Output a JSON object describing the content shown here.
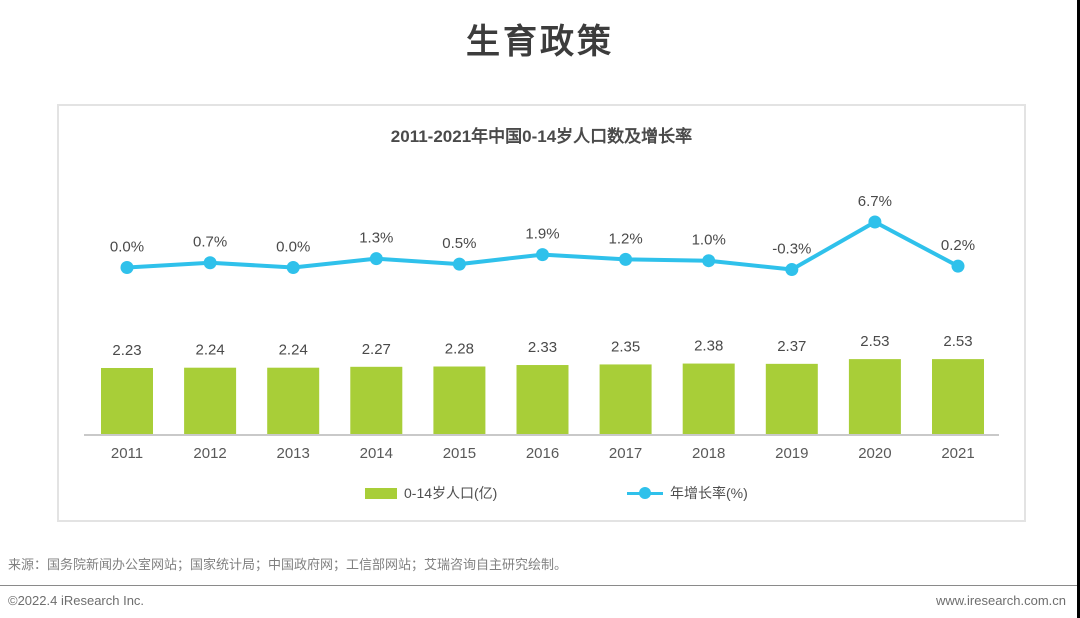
{
  "page_title": "生育政策",
  "chart_data": {
    "type": "bar+line",
    "title": "2011-2021年中国0-14岁人口数及增长率",
    "categories": [
      "2011",
      "2012",
      "2013",
      "2014",
      "2015",
      "2016",
      "2017",
      "2018",
      "2019",
      "2020",
      "2021"
    ],
    "series": [
      {
        "name": "0-14岁人口(亿)",
        "type": "bar",
        "color": "#a8ce38",
        "values": [
          2.23,
          2.24,
          2.24,
          2.27,
          2.28,
          2.33,
          2.35,
          2.38,
          2.37,
          2.53,
          2.53
        ],
        "labels": [
          "2.23",
          "2.24",
          "2.24",
          "2.27",
          "2.28",
          "2.33",
          "2.35",
          "2.38",
          "2.37",
          "2.53",
          "2.53"
        ]
      },
      {
        "name": "年增长率(%)",
        "type": "line",
        "color": "#2fc1eb",
        "values": [
          0.0,
          0.7,
          0.0,
          1.3,
          0.5,
          1.9,
          1.2,
          1.0,
          -0.3,
          6.7,
          0.2
        ],
        "labels": [
          "0.0%",
          "0.7%",
          "0.0%",
          "1.3%",
          "0.5%",
          "1.9%",
          "1.2%",
          "1.0%",
          "-0.3%",
          "6.7%",
          "0.2%"
        ]
      }
    ],
    "xlabel": "",
    "ylabel": "",
    "grid": false,
    "legend_position": "bottom",
    "axis_color": "#c9c9c9",
    "label_color": "#4a4a4a",
    "tick_color": "#595959"
  },
  "source_note": "来源：国务院新闻办公室网站；国家统计局；中国政府网；工信部网站；艾瑞咨询自主研究绘制。",
  "footer": {
    "left": "©2022.4 iResearch Inc.",
    "right": "www.iresearch.com.cn"
  }
}
